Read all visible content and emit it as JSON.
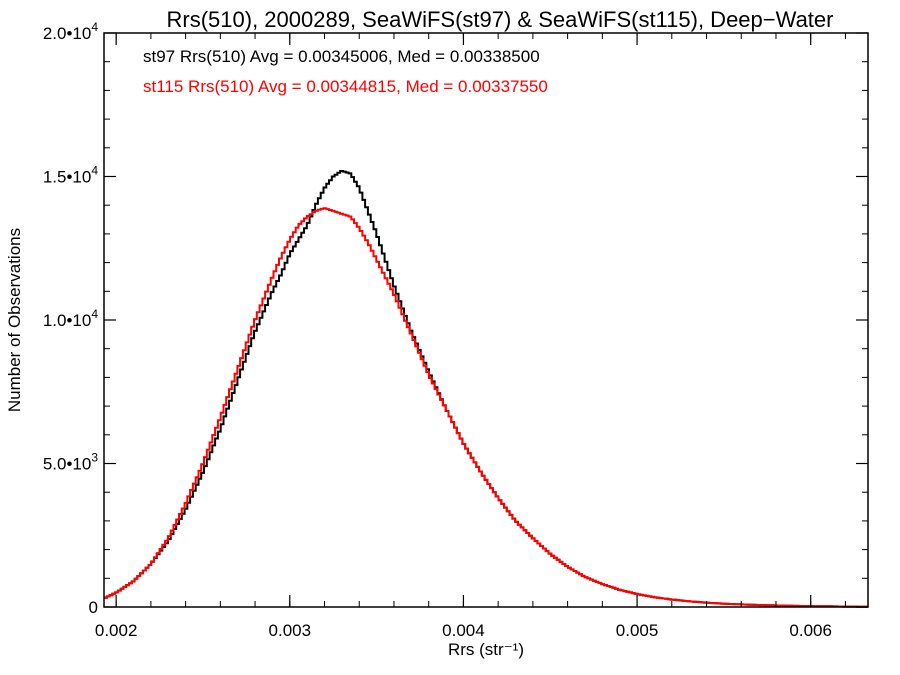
{
  "chart_data": {
    "type": "line",
    "title": "Rrs(510), 2000289, SeaWiFS(st97) & SeaWiFS(st115), Deep−Water",
    "xlabel": "Rrs (str⁻¹)",
    "ylabel": "Number of Observations",
    "xlim": [
      0.00193,
      0.00633
    ],
    "ylim": [
      0,
      20000
    ],
    "grid": false,
    "x_ticks": [
      {
        "value": 0.002,
        "label": "0.002"
      },
      {
        "value": 0.003,
        "label": "0.003"
      },
      {
        "value": 0.004,
        "label": "0.004"
      },
      {
        "value": 0.005,
        "label": "0.005"
      },
      {
        "value": 0.006,
        "label": "0.006"
      }
    ],
    "y_ticks": [
      {
        "value": 0,
        "mant": "0",
        "exp": ""
      },
      {
        "value": 5000,
        "mant": "5.0•1",
        "mid": "0",
        "exp": "3"
      },
      {
        "value": 10000,
        "mant": "1.0•1",
        "mid": "0",
        "exp": "4"
      },
      {
        "value": 15000,
        "mant": "1.5•1",
        "mid": "0",
        "exp": "4"
      },
      {
        "value": 20000,
        "mant": "2.0•1",
        "mid": "0",
        "exp": "4"
      }
    ],
    "annotations": [
      {
        "text": "st97 Rrs(510) Avg = 0.00345006, Med = 0.00338500",
        "color": "#000000"
      },
      {
        "text": "st115 Rrs(510) Avg = 0.00344815, Med = 0.00337550",
        "color": "#ff0000"
      }
    ],
    "series": [
      {
        "color": "#000000",
        "x": [
          0.00193,
          0.002,
          0.0021,
          0.0022,
          0.0023,
          0.0024,
          0.0025,
          0.0026,
          0.0027,
          0.0028,
          0.0029,
          0.00295,
          0.003,
          0.00305,
          0.0031,
          0.00315,
          0.0032,
          0.00325,
          0.0033,
          0.00335,
          0.0034,
          0.00345,
          0.0035,
          0.00355,
          0.0036,
          0.00365,
          0.0037,
          0.0038,
          0.0039,
          0.004,
          0.0041,
          0.0042,
          0.0043,
          0.0044,
          0.0045,
          0.0046,
          0.0047,
          0.0048,
          0.0049,
          0.005,
          0.0051,
          0.0052,
          0.0053,
          0.0054,
          0.0055,
          0.0056,
          0.0057,
          0.0058,
          0.0059,
          0.006,
          0.0061,
          0.0062,
          0.00633
        ],
        "y": [
          300,
          500,
          900,
          1500,
          2300,
          3400,
          4700,
          6200,
          7900,
          9600,
          11000,
          11600,
          12300,
          12800,
          13300,
          14000,
          14600,
          15000,
          15200,
          15100,
          14600,
          13800,
          13000,
          12100,
          11200,
          10400,
          9600,
          8200,
          6900,
          5700,
          4700,
          3800,
          3000,
          2400,
          1850,
          1400,
          1050,
          800,
          600,
          450,
          340,
          260,
          200,
          150,
          115,
          90,
          70,
          55,
          40,
          30,
          25,
          15,
          10
        ]
      },
      {
        "color": "#ff0000",
        "x": [
          0.00193,
          0.002,
          0.0021,
          0.0022,
          0.0023,
          0.0024,
          0.0025,
          0.0026,
          0.0027,
          0.0028,
          0.0029,
          0.00295,
          0.003,
          0.00305,
          0.0031,
          0.00315,
          0.0032,
          0.00325,
          0.0033,
          0.00335,
          0.0034,
          0.00345,
          0.0035,
          0.00355,
          0.0036,
          0.00365,
          0.0037,
          0.0038,
          0.0039,
          0.004,
          0.0041,
          0.0042,
          0.0043,
          0.0044,
          0.0045,
          0.0046,
          0.0047,
          0.0048,
          0.0049,
          0.005,
          0.0051,
          0.0052,
          0.0053,
          0.0054,
          0.0055,
          0.0056,
          0.0057,
          0.0058,
          0.0059,
          0.006,
          0.0061,
          0.0062,
          0.00633
        ],
        "y": [
          300,
          500,
          900,
          1500,
          2400,
          3600,
          5000,
          6600,
          8300,
          10000,
          11500,
          12200,
          12800,
          13300,
          13600,
          13800,
          13900,
          13800,
          13700,
          13600,
          13200,
          12700,
          12100,
          11500,
          10900,
          10200,
          9500,
          8100,
          6900,
          5700,
          4700,
          3800,
          3000,
          2400,
          1850,
          1400,
          1050,
          800,
          600,
          450,
          340,
          260,
          200,
          150,
          115,
          90,
          70,
          55,
          40,
          30,
          25,
          15,
          10
        ]
      }
    ]
  }
}
